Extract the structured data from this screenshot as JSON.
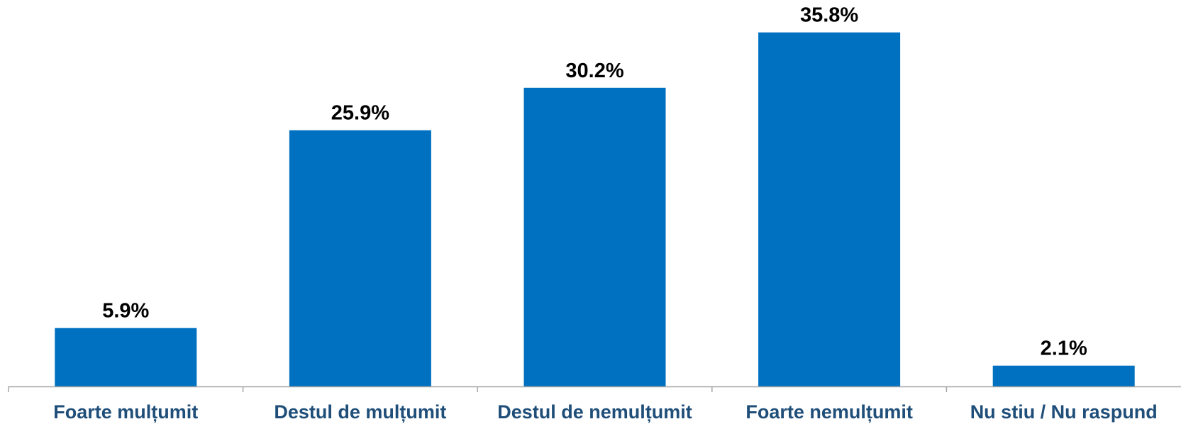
{
  "chart_data": {
    "type": "bar",
    "title": "",
    "xlabel": "",
    "ylabel": "",
    "categories": [
      "Foarte mulțumit",
      "Destul de mulțumit",
      "Destul de nemulțumit",
      "Foarte nemulțumit",
      "Nu stiu / Nu raspund"
    ],
    "values": [
      5.9,
      25.9,
      30.2,
      35.8,
      2.1
    ],
    "value_labels": [
      "5.9%",
      "25.9%",
      "30.2%",
      "35.8%",
      "2.1%"
    ],
    "ylim": [
      0,
      38.5
    ],
    "grid": false,
    "legend": "none",
    "colors": {
      "bar": "#0070C0",
      "category_text": "#1F4E79",
      "axis": "#A6A6A6"
    }
  }
}
